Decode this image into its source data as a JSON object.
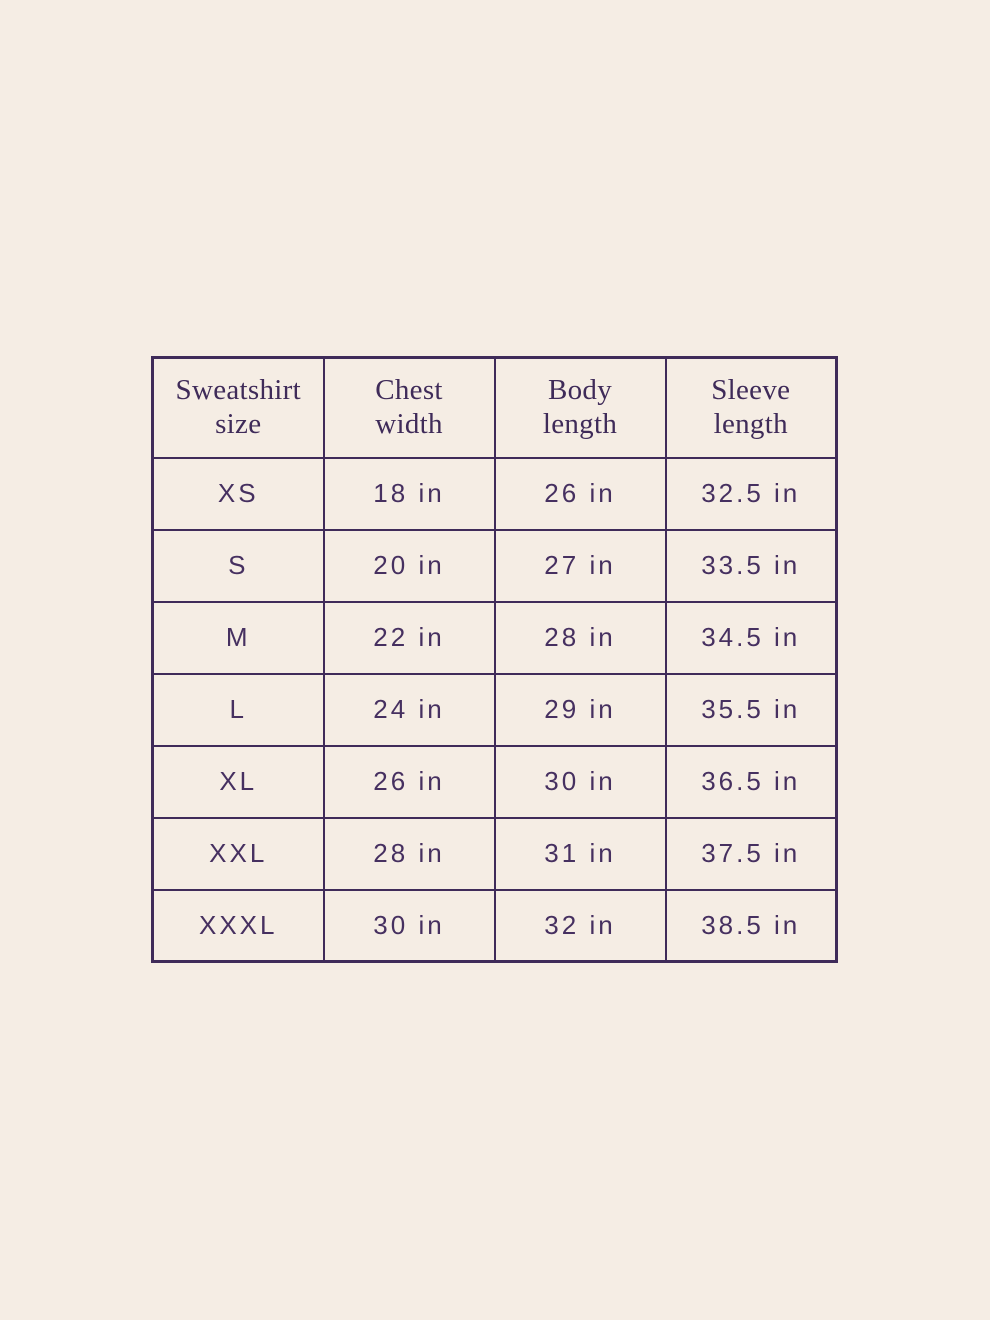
{
  "colors": {
    "background": "#f5ede4",
    "table_border": "#3f2b59",
    "header_text": "#3f2b59",
    "cell_text": "#463060"
  },
  "chart_data": {
    "type": "table",
    "columns": [
      "Sweatshirt size",
      "Chest width",
      "Body length",
      "Sleeve length"
    ],
    "column_lines": [
      [
        "Sweatshirt",
        "size"
      ],
      [
        "Chest",
        "width"
      ],
      [
        "Body",
        "length"
      ],
      [
        "Sleeve",
        "length"
      ]
    ],
    "rows": [
      [
        "XS",
        "18 in",
        "26 in",
        "32.5 in"
      ],
      [
        "S",
        "20 in",
        "27 in",
        "33.5 in"
      ],
      [
        "M",
        "22 in",
        "28 in",
        "34.5 in"
      ],
      [
        "L",
        "24 in",
        "29 in",
        "35.5 in"
      ],
      [
        "XL",
        "26 in",
        "30 in",
        "36.5 in"
      ],
      [
        "XXL",
        "28 in",
        "31 in",
        "37.5 in"
      ],
      [
        "XXXL",
        "30 in",
        "32 in",
        "38.5 in"
      ]
    ],
    "units": "in",
    "layout": "grid lines on, centered table, header row serif, body rows sans"
  }
}
